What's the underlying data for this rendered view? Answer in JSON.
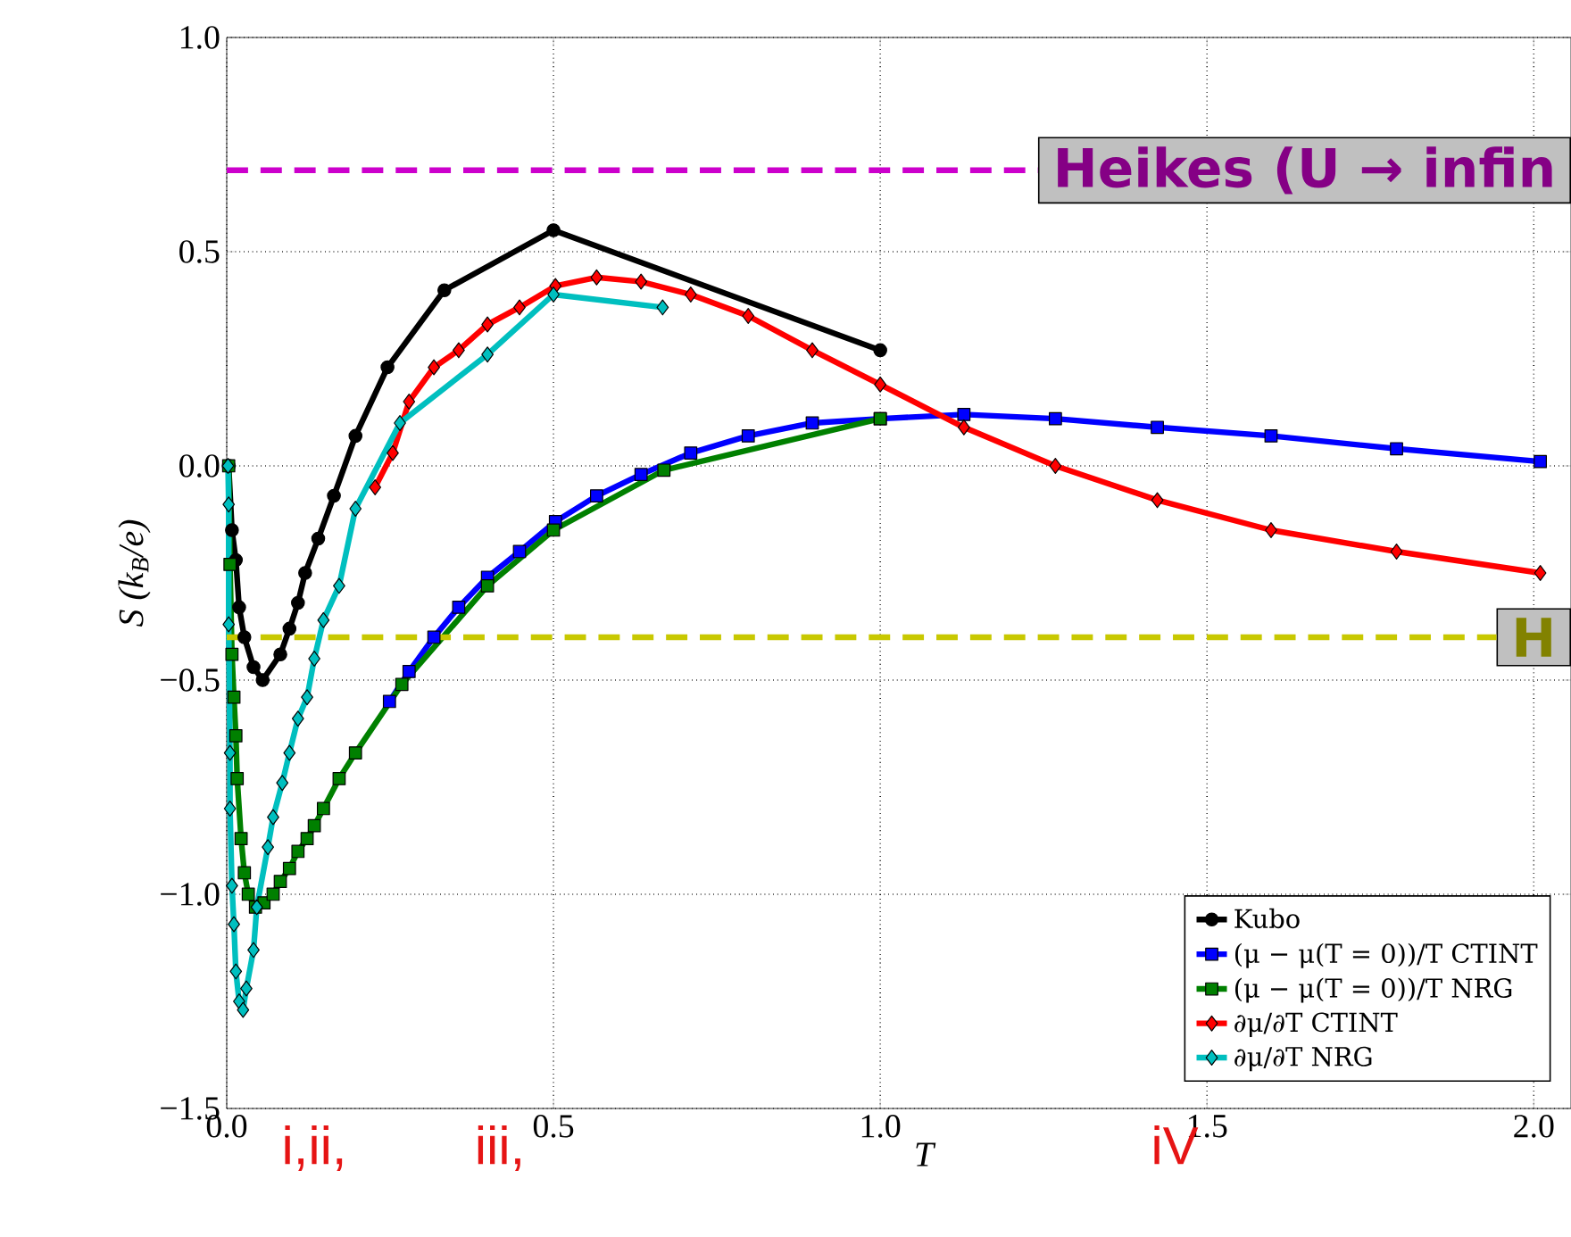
{
  "chart_data": {
    "type": "line",
    "xlabel": "T",
    "ylabel": "S  (k$_{B}$/e)",
    "xlim": [
      0,
      2.057
    ],
    "ylim": [
      -1.5,
      1.0
    ],
    "xticks": [
      {
        "value": 0,
        "label": "0.0"
      },
      {
        "value": 0.5,
        "label": "0.5"
      },
      {
        "value": 1.0,
        "label": "1.0"
      },
      {
        "value": 1.5,
        "label": "1.5"
      },
      {
        "value": 2.0,
        "label": "2.0"
      }
    ],
    "yticks": [
      {
        "value": -1.5,
        "label": "−1.5"
      },
      {
        "value": -1.0,
        "label": "−1.0"
      },
      {
        "value": -0.5,
        "label": "−0.5"
      },
      {
        "value": 0,
        "label": "0.0"
      },
      {
        "value": 0.5,
        "label": "0.5"
      },
      {
        "value": 1.0,
        "label": "1.0"
      }
    ],
    "grid": true,
    "legend": "bottom right",
    "series": [
      {
        "name": "Kubo",
        "color": "#000000",
        "marker": "circle",
        "x": [
          0.003,
          0.008,
          0.014,
          0.019,
          0.027,
          0.041,
          0.055,
          0.082,
          0.096,
          0.109,
          0.12,
          0.14,
          0.164,
          0.197,
          0.246,
          0.333,
          0.5,
          1.0
        ],
        "values": [
          0.0,
          -0.15,
          -0.22,
          -0.33,
          -0.4,
          -0.47,
          -0.5,
          -0.44,
          -0.38,
          -0.32,
          -0.25,
          -0.17,
          -0.07,
          0.07,
          0.23,
          0.41,
          0.55,
          0.27
        ]
      },
      {
        "name": "(μ − μ(T = 0))/T CTINT",
        "color": "#0000ff",
        "marker": "square",
        "x": [
          0.249,
          0.279,
          0.317,
          0.355,
          0.399,
          0.448,
          0.503,
          0.566,
          0.634,
          0.71,
          0.798,
          0.896,
          1.0,
          1.128,
          1.268,
          1.424,
          1.598,
          1.79,
          2.01
        ],
        "values": [
          -0.55,
          -0.48,
          -0.4,
          -0.33,
          -0.26,
          -0.2,
          -0.13,
          -0.07,
          -0.02,
          0.03,
          0.07,
          0.1,
          0.11,
          0.12,
          0.11,
          0.09,
          0.07,
          0.04,
          0.01
        ]
      },
      {
        "name": "(μ − μ(T = 0))/T NRG",
        "color": "#008000",
        "marker": "square",
        "x": [
          0.003,
          0.005,
          0.008,
          0.011,
          0.014,
          0.016,
          0.022,
          0.027,
          0.033,
          0.044,
          0.057,
          0.071,
          0.082,
          0.096,
          0.109,
          0.123,
          0.134,
          0.148,
          0.172,
          0.197,
          0.268,
          0.399,
          0.5,
          0.669,
          1.0
        ],
        "values": [
          0.0,
          -0.23,
          -0.44,
          -0.54,
          -0.63,
          -0.73,
          -0.87,
          -0.95,
          -1.0,
          -1.03,
          -1.02,
          -1.0,
          -0.97,
          -0.94,
          -0.9,
          -0.87,
          -0.84,
          -0.8,
          -0.73,
          -0.67,
          -0.51,
          -0.28,
          -0.15,
          -0.01,
          0.11
        ]
      },
      {
        "name": "∂μ/∂T CTINT",
        "color": "#ff0000",
        "marker": "diamond",
        "x": [
          0.227,
          0.254,
          0.279,
          0.317,
          0.355,
          0.399,
          0.448,
          0.503,
          0.566,
          0.634,
          0.71,
          0.798,
          0.896,
          1.0,
          1.128,
          1.268,
          1.424,
          1.598,
          1.79,
          2.01
        ],
        "values": [
          -0.05,
          0.03,
          0.15,
          0.23,
          0.27,
          0.33,
          0.37,
          0.42,
          0.44,
          0.43,
          0.4,
          0.35,
          0.27,
          0.19,
          0.09,
          0.0,
          -0.08,
          -0.15,
          -0.2,
          -0.25
        ]
      },
      {
        "name": "∂μ/∂T NRG",
        "color": "#00bfbf",
        "marker": "diamond",
        "x": [
          0.002,
          0.003,
          0.003,
          0.005,
          0.005,
          0.008,
          0.011,
          0.014,
          0.019,
          0.025,
          0.03,
          0.041,
          0.046,
          0.063,
          0.071,
          0.085,
          0.096,
          0.109,
          0.123,
          0.134,
          0.148,
          0.172,
          0.197,
          0.265,
          0.399,
          0.5,
          0.667
        ],
        "values": [
          0.0,
          -0.09,
          -0.37,
          -0.67,
          -0.8,
          -0.98,
          -1.07,
          -1.18,
          -1.25,
          -1.27,
          -1.22,
          -1.13,
          -1.03,
          -0.89,
          -0.82,
          -0.74,
          -0.67,
          -0.59,
          -0.54,
          -0.45,
          -0.36,
          -0.28,
          -0.1,
          0.1,
          0.26,
          0.4,
          0.37
        ]
      }
    ],
    "ref_lines": [
      {
        "axis": "y",
        "value": 0.69,
        "label": "Heikes (U → infin",
        "color": "#cc00cc",
        "line_style": "dashed"
      },
      {
        "axis": "y",
        "value": -0.4,
        "label": "H",
        "color": "#c8c800",
        "line_style": "dashed"
      }
    ],
    "annotations": [
      "i,ii,",
      "iii,",
      "iV"
    ]
  }
}
